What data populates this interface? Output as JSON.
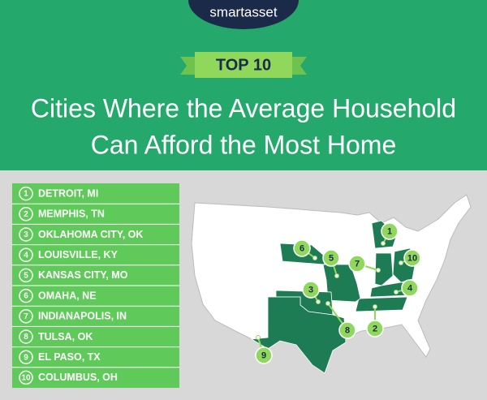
{
  "header": {
    "logo": "smartasset",
    "badge": "TOP 10",
    "title_lines": [
      "Cities Where the Average Household",
      "Can Afford the Most Home"
    ]
  },
  "list": [
    {
      "rank": "1",
      "city": "DETROIT, MI"
    },
    {
      "rank": "2",
      "city": "MEMPHIS, TN"
    },
    {
      "rank": "3",
      "city": "OKLAHOMA CITY, OK"
    },
    {
      "rank": "4",
      "city": "LOUISVILLE, KY"
    },
    {
      "rank": "5",
      "city": "KANSAS CITY, MO"
    },
    {
      "rank": "6",
      "city": "OMAHA, NE"
    },
    {
      "rank": "7",
      "city": "INDIANAPOLIS, IN"
    },
    {
      "rank": "8",
      "city": "TULSA, OK"
    },
    {
      "rank": "9",
      "city": "EL PASO, TX"
    },
    {
      "rank": "10",
      "city": "COLUMBUS, OH"
    }
  ]
}
